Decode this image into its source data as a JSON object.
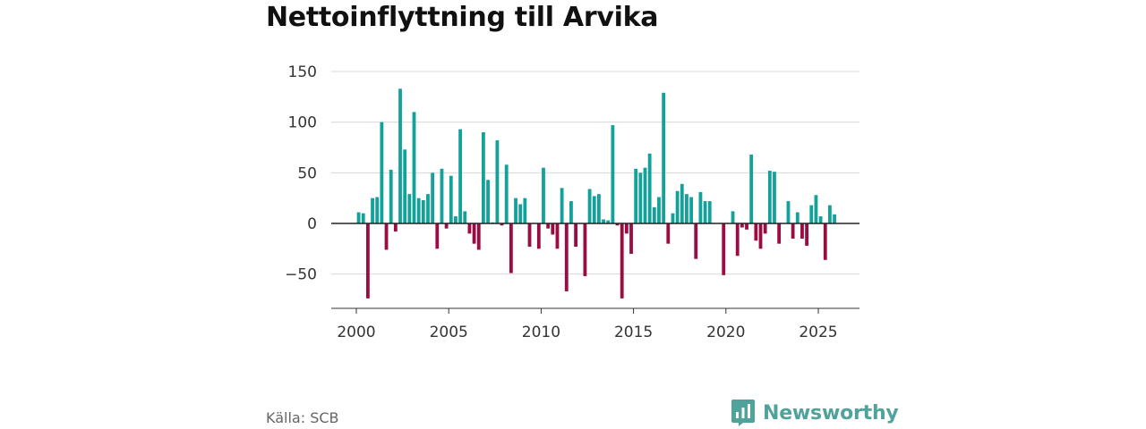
{
  "title": "Nettoinflyttning till Arvika",
  "source": "Källa: SCB",
  "brand": {
    "name": "Newsworthy",
    "color": "#4fa39a"
  },
  "colors": {
    "positive": "#12a29a",
    "negative": "#9b0c43",
    "grid": "#d8d8d8",
    "zero": "#222222"
  },
  "chart_data": {
    "type": "bar",
    "title": "Nettoinflyttning till Arvika",
    "xlabel": "",
    "ylabel": "",
    "ylim": [
      -90,
      150
    ],
    "xlim": [
      1998.7,
      2027.3
    ],
    "y_ticks": [
      150,
      100,
      50,
      0,
      -50
    ],
    "y_tick_labels": [
      "150",
      "100",
      "50",
      "0",
      "−50"
    ],
    "x_ticks": [
      2000,
      2005,
      2010,
      2015,
      2020,
      2025
    ],
    "x_tick_labels": [
      "2000",
      "2005",
      "2010",
      "2015",
      "2020",
      "2025"
    ],
    "start": 2000.125,
    "step": 0.25,
    "frequency": "quarterly",
    "values": [
      11,
      10,
      -74,
      25,
      26,
      100,
      -26,
      53,
      -8,
      133,
      73,
      29,
      110,
      25,
      23,
      29,
      50,
      -25,
      54,
      -5,
      47,
      7,
      93,
      12,
      -10,
      -20,
      -26,
      90,
      43,
      1,
      82,
      -2,
      58,
      -49,
      25,
      19,
      25,
      -23,
      0,
      -25,
      55,
      -5,
      -11,
      -25,
      35,
      -67,
      22,
      -23,
      0,
      -52,
      34,
      27,
      29,
      4,
      3,
      97,
      -2,
      -74,
      -10,
      -30,
      54,
      50,
      55,
      69,
      16,
      26,
      129,
      -20,
      10,
      32,
      39,
      29,
      26,
      -35,
      31,
      22,
      22,
      0,
      0,
      -51,
      0,
      12,
      -32,
      -4,
      -6,
      68,
      -17,
      -25,
      -10,
      52,
      51,
      -20,
      0,
      22,
      -15,
      11,
      -15,
      -22,
      18,
      28,
      7,
      -36,
      18,
      9
    ]
  }
}
